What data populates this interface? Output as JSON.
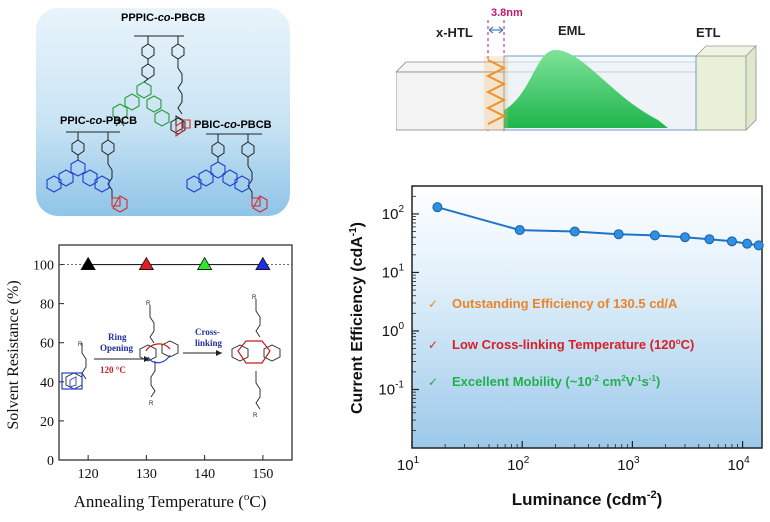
{
  "polymers": {
    "top": {
      "prefix": "PPPIC-",
      "co": "co",
      "suffix": "-PBCB"
    },
    "left": {
      "prefix": "PPIC-",
      "co": "co",
      "suffix": "-PBCB"
    },
    "right": {
      "prefix": "PBIC-",
      "co": "co",
      "suffix": "-PBCB"
    }
  },
  "device": {
    "xhtl": "x-HTL",
    "eml": "EML",
    "etl": "ETL",
    "thickness": "3.8nm",
    "colors": {
      "eml_green": "#3ecf6a",
      "ladder": "#f2a640",
      "thickness_label": "#c0186a"
    }
  },
  "solvent_chart": {
    "ylabel": "Solvent Resistance (%)",
    "xlabel": "Annealing Temperature (",
    "xlabel_sup": "o",
    "xlabel_end": "C)",
    "ytick_labels": [
      "0",
      "20",
      "40",
      "60",
      "80",
      "100"
    ],
    "xtick_labels": [
      "120",
      "130",
      "140",
      "150"
    ],
    "ring_opening": [
      "Ring",
      "Opening"
    ],
    "temp_label": "120 °C",
    "cross_linking": [
      "Cross-",
      "linking"
    ],
    "r_label": "R"
  },
  "efficiency_chart": {
    "ylabel_main": "Current Efficiency (cdA",
    "ylabel_sup": "-1",
    "ylabel_end": ")",
    "xlabel_main": "Luminance (cdm",
    "xlabel_sup": "-2",
    "xlabel_end": ")",
    "ytick_labels": [
      {
        "base": "10",
        "exp": "2"
      },
      {
        "base": "10",
        "exp": "1"
      },
      {
        "base": "10",
        "exp": "0"
      },
      {
        "base": "10",
        "exp": "-1"
      }
    ],
    "xtick_labels": [
      {
        "base": "10",
        "exp": "1"
      },
      {
        "base": "10",
        "exp": "2"
      },
      {
        "base": "10",
        "exp": "3"
      },
      {
        "base": "10",
        "exp": "4"
      }
    ],
    "checkmark": "✓",
    "highlights": [
      {
        "text": "Outstanding Efficiency of 130.5 cd/A",
        "color": "#e8852a"
      },
      {
        "pre": "Low Cross-linking Temperature (120",
        "sup": "o",
        "post": "C)",
        "color": "#d81f26"
      },
      {
        "pre": "Excellent Mobility (~10",
        "sup1": "-2",
        "mid": " cm",
        "sup2": "2",
        "mid2": "V",
        "sup3": "-1",
        "mid3": "s",
        "sup4": "-1",
        "post": ")",
        "color": "#22b04c"
      }
    ]
  },
  "chart_data": [
    {
      "type": "scatter",
      "title": "",
      "xlabel": "Annealing Temperature (oC)",
      "ylabel": "Solvent Resistance (%)",
      "x": [
        120,
        130,
        140,
        150
      ],
      "y": [
        100,
        100,
        100,
        100
      ],
      "marker_colors": [
        "#000000",
        "#e01e1e",
        "#2ee82e",
        "#1e2ee8"
      ],
      "xlim": [
        115,
        155
      ],
      "ylim": [
        0,
        110
      ]
    },
    {
      "type": "line",
      "title": "",
      "xlabel": "Luminance (cdm-2)",
      "ylabel": "Current Efficiency (cdA-1)",
      "xscale": "log",
      "yscale": "log",
      "x": [
        17,
        95,
        300,
        750,
        1600,
        3000,
        5000,
        8000,
        11000,
        14000
      ],
      "y": [
        130.5,
        53,
        50,
        45,
        43,
        40,
        37,
        34,
        31,
        29
      ],
      "xlim": [
        10,
        15000
      ],
      "ylim": [
        0.01,
        300
      ],
      "color": "#1f73c9"
    }
  ]
}
